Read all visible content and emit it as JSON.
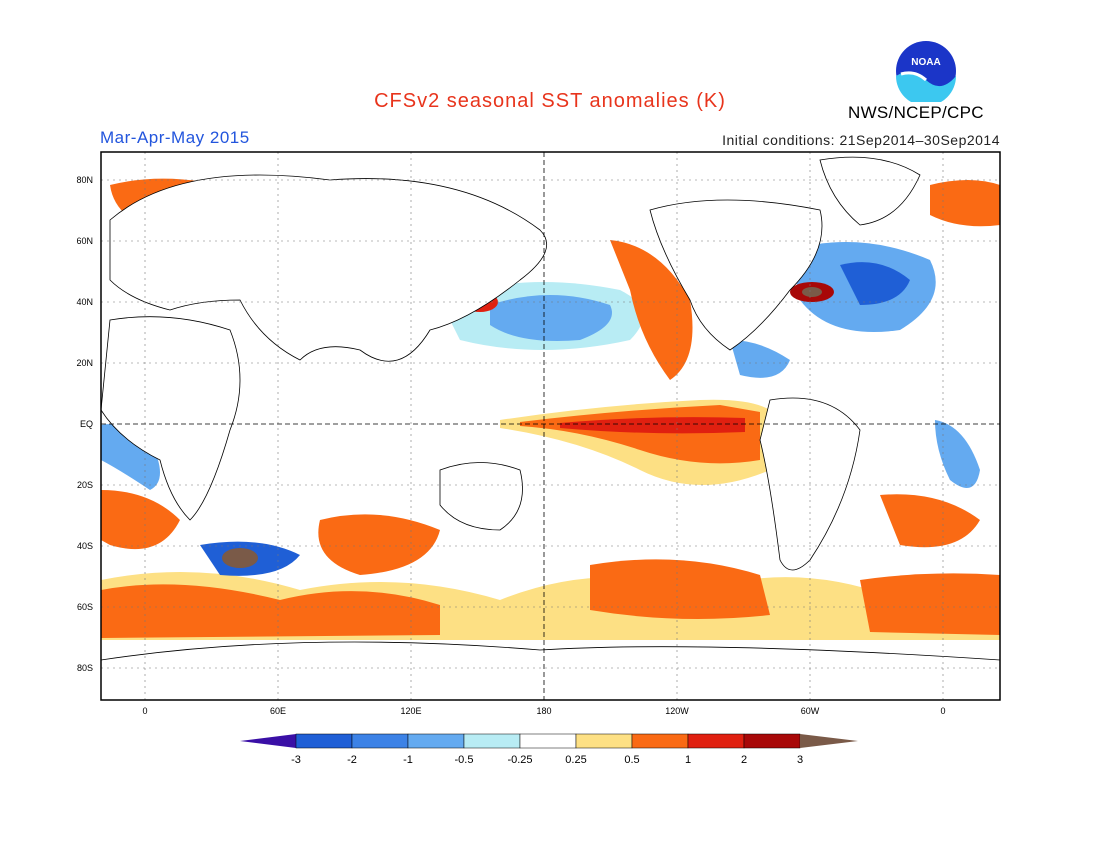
{
  "title": "CFSv2 seasonal SST anomalies (K)",
  "period": "Mar-Apr-May 2015",
  "initial_conditions": "Initial conditions: 21Sep2014–30Sep2014",
  "agency": "NWS/NCEP/CPC",
  "logo": {
    "name": "noaa-logo",
    "text": "NOAA"
  },
  "map": {
    "lat_ticks": [
      "80N",
      "60N",
      "40N",
      "20N",
      "EQ",
      "20S",
      "40S",
      "60S",
      "80S"
    ],
    "lon_ticks": [
      "0",
      "60E",
      "120E",
      "180",
      "120W",
      "60W",
      "0"
    ]
  },
  "colorbar": {
    "labels": [
      "-3",
      "-2",
      "-1",
      "-0.5",
      "-0.25",
      "0.25",
      "0.5",
      "1",
      "2",
      "3"
    ],
    "colors": [
      "#3a0fa6",
      "#1f5fd6",
      "#3c82e6",
      "#64aaf0",
      "#b8ecf4",
      "#ffffff",
      "#fde084",
      "#fa6a14",
      "#e02010",
      "#a80808",
      "#7a5a48"
    ]
  }
}
